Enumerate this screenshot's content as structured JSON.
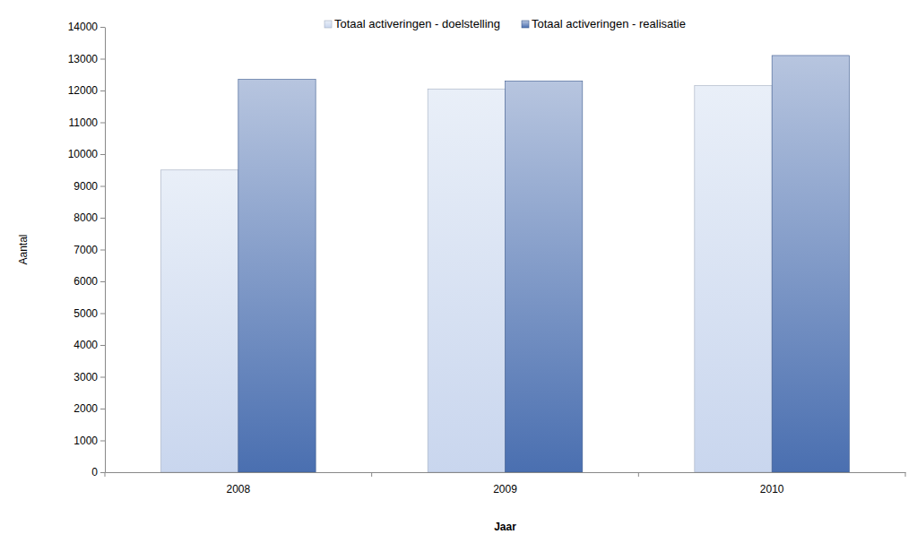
{
  "chart_data": {
    "type": "bar",
    "categories": [
      "2008",
      "2009",
      "2010"
    ],
    "series": [
      {
        "name": "Totaal activeringen - doelstelling",
        "color": "#c9d6ee",
        "values": [
          9500,
          12050,
          12150
        ]
      },
      {
        "name": "Totaal activeringen - realisatie",
        "color": "#4a6fb0",
        "values": [
          12350,
          12300,
          13100
        ]
      }
    ],
    "x_label": "Jaar",
    "y_label": "Aantal",
    "ylim": [
      0,
      14000
    ],
    "yticks": [
      0,
      1000,
      2000,
      3000,
      4000,
      5000,
      6000,
      7000,
      8000,
      9000,
      10000,
      11000,
      12000,
      13000,
      14000
    ],
    "grid": false,
    "legend": "top"
  }
}
